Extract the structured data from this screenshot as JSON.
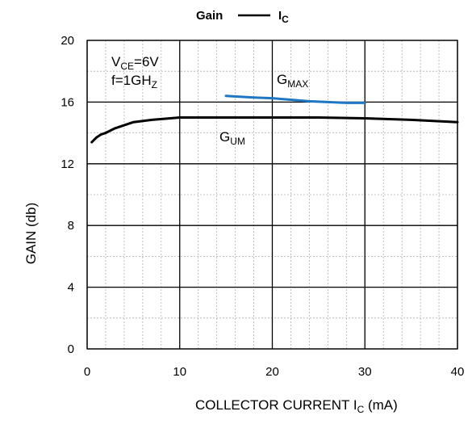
{
  "chart_data": {
    "type": "line",
    "title": {
      "prefix": "Gain",
      "symbol_main": "I",
      "symbol_sub": "C"
    },
    "xlabel": {
      "main": "COLLECTOR CURRENT I",
      "sub": "C",
      "suffix": " (mA)"
    },
    "ylabel": "GAIN   (db)",
    "xlim": [
      0,
      40
    ],
    "ylim": [
      0,
      20
    ],
    "x_ticks": [
      0,
      10,
      20,
      30,
      40
    ],
    "y_ticks": [
      0,
      4,
      8,
      12,
      16,
      20
    ],
    "x_minor_step": 2,
    "y_minor_step": 2,
    "grid": true,
    "conditions": {
      "vce": {
        "main": "V",
        "sub": "CE",
        "value": "=6V"
      },
      "freq": {
        "main": "f=1GH",
        "sub": "Z"
      }
    },
    "series": [
      {
        "label_main": "G",
        "label_sub": "MAX",
        "color": "#1f77c4",
        "x": [
          15,
          18,
          20,
          22,
          24,
          26,
          28,
          30
        ],
        "y": [
          16.4,
          16.3,
          16.25,
          16.15,
          16.05,
          16.0,
          15.95,
          15.95
        ]
      },
      {
        "label_main": "G",
        "label_sub": "UM",
        "color": "#000000",
        "x": [
          0.5,
          1,
          1.5,
          2,
          3,
          4,
          5,
          7,
          10,
          15,
          20,
          25,
          30,
          35,
          40
        ],
        "y": [
          13.4,
          13.7,
          13.9,
          14.0,
          14.3,
          14.5,
          14.7,
          14.85,
          15.0,
          15.0,
          15.0,
          15.0,
          14.95,
          14.85,
          14.7
        ]
      }
    ]
  }
}
